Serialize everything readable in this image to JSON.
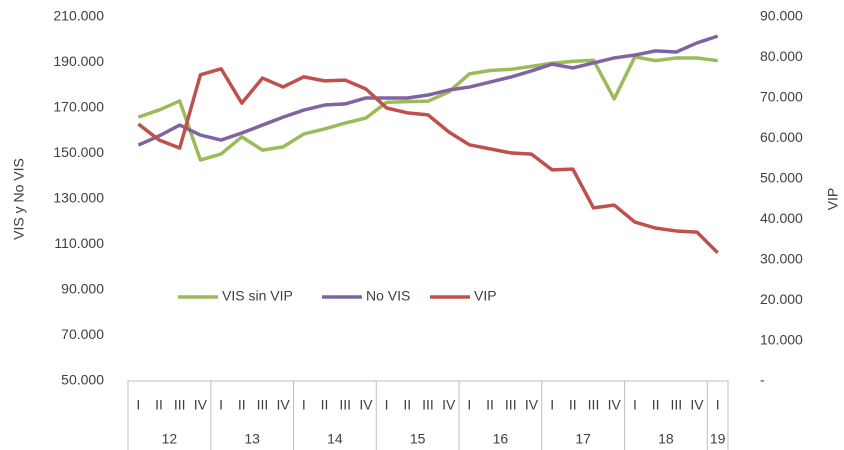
{
  "chart_data": {
    "type": "line",
    "y_label": "VIS y No VIS",
    "y2_label": "VIP",
    "categories": [
      "I",
      "II",
      "III",
      "IV",
      "I",
      "II",
      "III",
      "IV",
      "I",
      "II",
      "III",
      "IV",
      "I",
      "II",
      "III",
      "IV",
      "I",
      "II",
      "III",
      "IV",
      "I",
      "II",
      "III",
      "IV",
      "I",
      "II",
      "III",
      "IV",
      "I"
    ],
    "year_groups": [
      {
        "label": "12",
        "span": 4
      },
      {
        "label": "13",
        "span": 4
      },
      {
        "label": "14",
        "span": 4
      },
      {
        "label": "15",
        "span": 4
      },
      {
        "label": "16",
        "span": 4
      },
      {
        "label": "17",
        "span": 4
      },
      {
        "label": "18",
        "span": 4
      },
      {
        "label": "19",
        "span": 1
      }
    ],
    "ylim": [
      50000,
      210000
    ],
    "yticks": [
      {
        "value": 50000,
        "label": "50.000"
      },
      {
        "value": 70000,
        "label": "70.000"
      },
      {
        "value": 90000,
        "label": "90.000"
      },
      {
        "value": 110000,
        "label": "110.000"
      },
      {
        "value": 130000,
        "label": "130.000"
      },
      {
        "value": 150000,
        "label": "150.000"
      },
      {
        "value": 170000,
        "label": "170.000"
      },
      {
        "value": 190000,
        "label": "190.000"
      },
      {
        "value": 210000,
        "label": "210.000"
      }
    ],
    "y2lim": [
      0,
      90000
    ],
    "y2ticks": [
      {
        "value": 0,
        "label": "-"
      },
      {
        "value": 10000,
        "label": "10.000"
      },
      {
        "value": 20000,
        "label": "20.000"
      },
      {
        "value": 30000,
        "label": "30.000"
      },
      {
        "value": 40000,
        "label": "40.000"
      },
      {
        "value": 50000,
        "label": "50.000"
      },
      {
        "value": 60000,
        "label": "60.000"
      },
      {
        "value": 70000,
        "label": "70.000"
      },
      {
        "value": 80000,
        "label": "80.000"
      },
      {
        "value": 90000,
        "label": "90.000"
      }
    ],
    "series": [
      {
        "name": "VIS sin VIP",
        "color": "#9bbb59",
        "values": [
          166000,
          169100,
          173100,
          147100,
          149800,
          157300,
          151500,
          152900,
          158600,
          160800,
          163400,
          165600,
          172500,
          172800,
          173000,
          177000,
          185000,
          186500,
          187000,
          188300,
          189700,
          190500,
          191000,
          174000,
          192500,
          190800,
          192000,
          192000,
          190800
        ]
      },
      {
        "name": "No VIS",
        "color": "#8064a2",
        "values": [
          153700,
          157700,
          162500,
          158100,
          155900,
          159000,
          162500,
          166000,
          169100,
          171300,
          171800,
          174400,
          174400,
          174400,
          175700,
          177900,
          179200,
          181400,
          183600,
          186300,
          189300,
          187600,
          189800,
          192000,
          193300,
          195100,
          194600,
          198600,
          201600
        ]
      },
      {
        "name": "VIP",
        "color": "#c0504d",
        "axis": "y2",
        "values": [
          63550,
          59600,
          57600,
          75700,
          77200,
          68700,
          74900,
          72700,
          75200,
          74200,
          74400,
          72200,
          67500,
          66300,
          65800,
          61600,
          58400,
          57400,
          56400,
          56100,
          52200,
          52400,
          42800,
          43500,
          39300,
          37800,
          37100,
          36800,
          31700
        ]
      }
    ]
  }
}
